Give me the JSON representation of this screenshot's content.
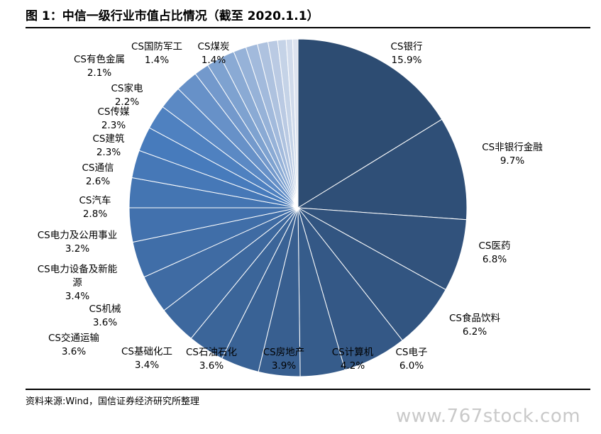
{
  "title": "图 1：中信一级行业市值占比情况（截至 2020.1.1）",
  "source": "资料来源:Wind，国信证券经济研究所整理",
  "watermark": "www.767stock.com",
  "chart_data": {
    "type": "pie",
    "start_angle": "12 o'clock",
    "direction": "clockwise",
    "slices": [
      {
        "label": "CS银行",
        "value": 15.9,
        "text": "15.9%"
      },
      {
        "label": "CS非银行金融",
        "value": 9.7,
        "text": "9.7%"
      },
      {
        "label": "CS医药",
        "value": 6.8,
        "text": "6.8%"
      },
      {
        "label": "CS食品饮料",
        "value": 6.2,
        "text": "6.2%"
      },
      {
        "label": "CS电子",
        "value": 6.0,
        "text": "6.0%"
      },
      {
        "label": "CS计算机",
        "value": 4.2,
        "text": "4.2%"
      },
      {
        "label": "CS房地产",
        "value": 3.9,
        "text": "3.9%"
      },
      {
        "label": "CS石油石化",
        "value": 3.6,
        "text": "3.6%"
      },
      {
        "label": "CS基础化工",
        "value": 3.4,
        "text": "3.4%"
      },
      {
        "label": "CS交通运输",
        "value": 3.6,
        "text": "3.6%"
      },
      {
        "label": "CS机械",
        "value": 3.6,
        "text": "3.6%"
      },
      {
        "label": "CS电力设备及新能源",
        "value": 3.4,
        "text": "3.4%"
      },
      {
        "label": "CS电力及公用事业",
        "value": 3.2,
        "text": "3.2%"
      },
      {
        "label": "CS汽车",
        "value": 2.8,
        "text": "2.8%"
      },
      {
        "label": "CS通信",
        "value": 2.6,
        "text": "2.6%"
      },
      {
        "label": "CS建筑",
        "value": 2.3,
        "text": "2.3%"
      },
      {
        "label": "CS传媒",
        "value": 2.3,
        "text": "2.3%"
      },
      {
        "label": "CS家电",
        "value": 2.2,
        "text": "2.2%"
      },
      {
        "label": "CS有色金属",
        "value": 2.1,
        "text": "2.1%"
      },
      {
        "label": "CS国防军工",
        "value": 1.4,
        "text": "1.4%"
      },
      {
        "label": "CS煤炭",
        "value": 1.4,
        "text": "1.4%"
      },
      {
        "label": "",
        "value": 1.3,
        "text": ""
      },
      {
        "label": "",
        "value": 1.2,
        "text": ""
      },
      {
        "label": "",
        "value": 1.1,
        "text": ""
      },
      {
        "label": "",
        "value": 1.0,
        "text": ""
      },
      {
        "label": "",
        "value": 0.9,
        "text": ""
      },
      {
        "label": "",
        "value": 0.8,
        "text": ""
      },
      {
        "label": "",
        "value": 0.6,
        "text": ""
      },
      {
        "label": "",
        "value": 0.5,
        "text": ""
      }
    ],
    "colors": {
      "darkest": "#2d4c72",
      "lightest": "#dde3ef",
      "slice_edge": "#ffffff"
    }
  }
}
